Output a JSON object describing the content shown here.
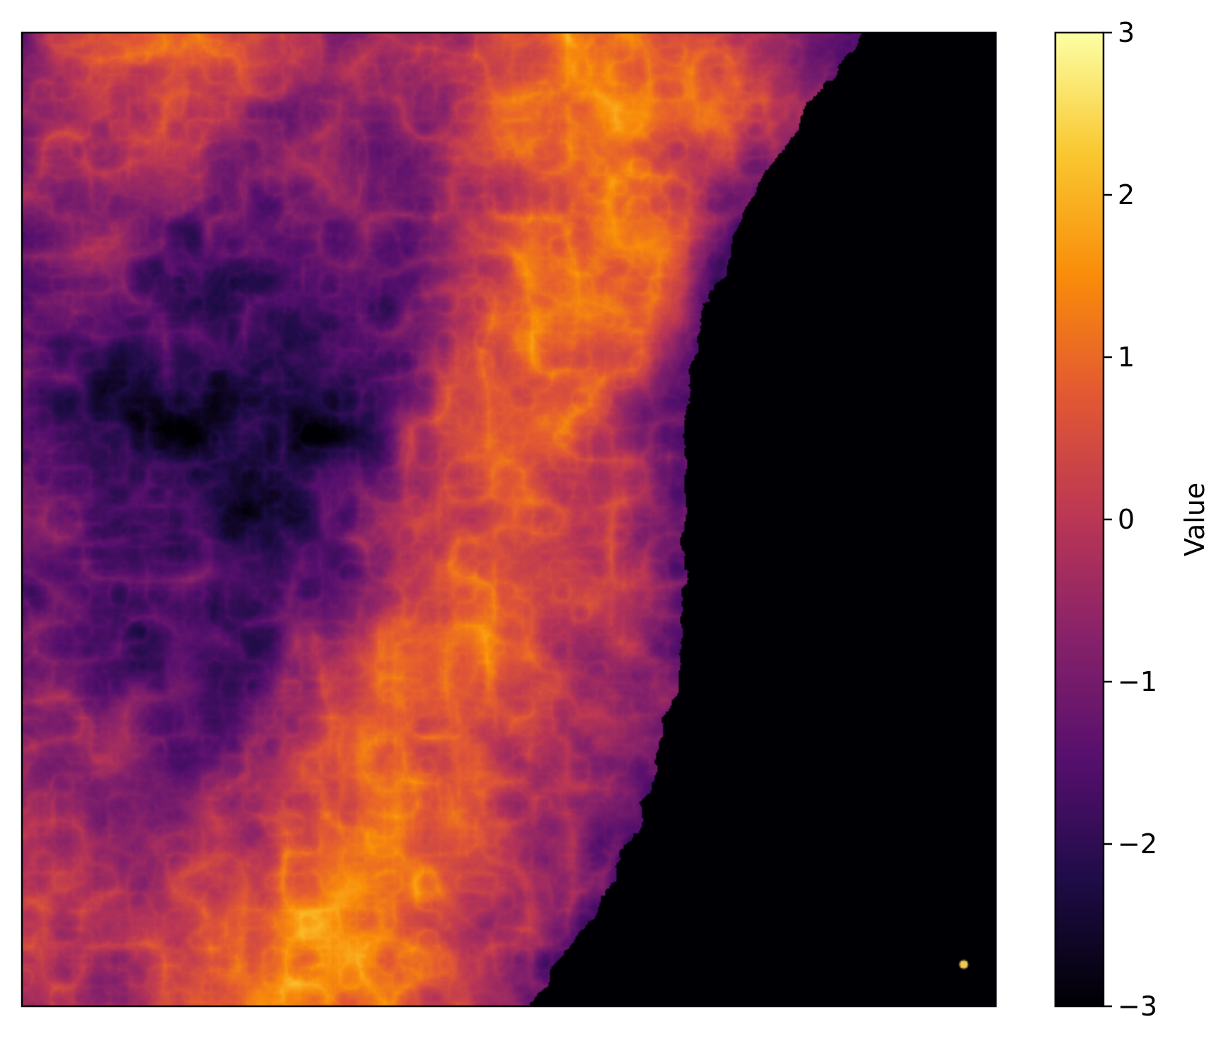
{
  "chart_data": {
    "type": "heatmap",
    "title": "",
    "xlabel": "",
    "ylabel": "",
    "colormap": "inferno",
    "colorbar": {
      "label": "Value",
      "range": [
        -3,
        3
      ],
      "ticks": [
        3,
        2,
        1,
        0,
        -1,
        -2,
        -3
      ],
      "tick_labels": [
        "3",
        "2",
        "1",
        "0",
        "−1",
        "−2",
        "−3"
      ]
    },
    "axes_ticks_visible": false,
    "description_note": null
  }
}
